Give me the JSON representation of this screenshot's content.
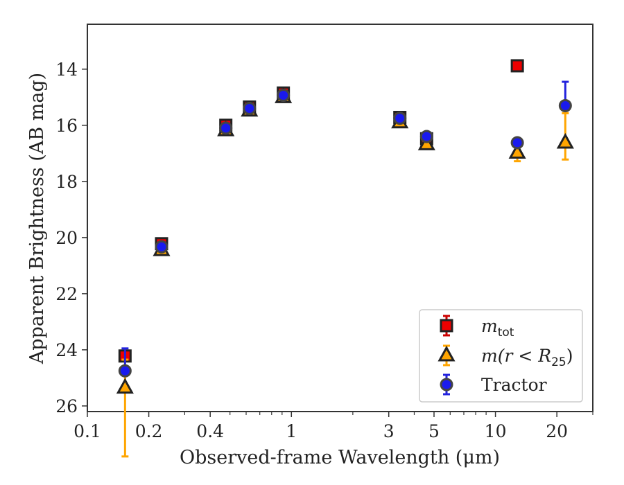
{
  "chart_data": {
    "type": "scatter",
    "title": "",
    "xlabel": "Observed-frame Wavelength (μm)",
    "ylabel": "Apparent Brightness (AB mag)",
    "xscale": "log",
    "xlim": [
      0.1,
      30
    ],
    "ylim": [
      26.2,
      12.4
    ],
    "y_inverted": true,
    "grid": false,
    "legend_position": "lower-right",
    "xticks": [
      {
        "value": 0.1,
        "label": "0.1"
      },
      {
        "value": 0.2,
        "label": "0.2"
      },
      {
        "value": 0.4,
        "label": "0.4"
      },
      {
        "value": 1,
        "label": "1"
      },
      {
        "value": 3,
        "label": "3"
      },
      {
        "value": 5,
        "label": "5"
      },
      {
        "value": 10,
        "label": "10"
      },
      {
        "value": 20,
        "label": "20"
      }
    ],
    "xminor": [
      0.3,
      0.5,
      0.6,
      0.7,
      0.8,
      0.9,
      2,
      4,
      6,
      7,
      8,
      9,
      30
    ],
    "yticks": [
      {
        "value": 14,
        "label": "14"
      },
      {
        "value": 16,
        "label": "16"
      },
      {
        "value": 18,
        "label": "18"
      },
      {
        "value": 20,
        "label": "20"
      },
      {
        "value": 22,
        "label": "22"
      },
      {
        "value": 24,
        "label": "24"
      },
      {
        "value": 26,
        "label": "26"
      }
    ],
    "series": [
      {
        "legend_main": "m",
        "legend_sub": "tot",
        "marker": "square",
        "color": "#ee0000",
        "errcolor": "#cc0000",
        "points": [
          {
            "x": 0.153,
            "y": 24.22,
            "err": 0.0
          },
          {
            "x": 0.231,
            "y": 20.22,
            "err": 0.0
          },
          {
            "x": 0.477,
            "y": 16.0,
            "err": 0.0
          },
          {
            "x": 0.623,
            "y": 15.35,
            "err": 0.0
          },
          {
            "x": 0.913,
            "y": 14.85,
            "err": 0.0
          },
          {
            "x": 3.4,
            "y": 15.72,
            "err": 0.0
          },
          {
            "x": 4.6,
            "y": 16.48,
            "err": 0.0
          },
          {
            "x": 12.8,
            "y": 13.88,
            "err": 0.0
          }
        ]
      },
      {
        "legend_main": "m(r < R",
        "legend_sub": "25",
        "legend_tail": ")",
        "marker": "triangle",
        "color": "#ffa500",
        "errcolor": "#ffa500",
        "points": [
          {
            "x": 0.153,
            "y": 25.35,
            "err": 1.0,
            "err_lo": 2.45,
            "err_hi": 1.0
          },
          {
            "x": 0.231,
            "y": 20.45,
            "err": 0.0
          },
          {
            "x": 0.477,
            "y": 16.18,
            "err": 0.0
          },
          {
            "x": 0.623,
            "y": 15.48,
            "err": 0.0
          },
          {
            "x": 0.913,
            "y": 15.0,
            "err": 0.0
          },
          {
            "x": 3.4,
            "y": 15.9,
            "err": 0.0
          },
          {
            "x": 4.6,
            "y": 16.68,
            "err": 0.0
          },
          {
            "x": 12.8,
            "y": 16.98,
            "err": 0.3
          },
          {
            "x": 22.0,
            "y": 16.62,
            "err_lo": 0.6,
            "err_hi": 1.05
          }
        ]
      },
      {
        "legend_main": "Tractor",
        "marker": "circle",
        "color": "#1a1aee",
        "errcolor": "#2222dd",
        "points": [
          {
            "x": 0.153,
            "y": 24.75,
            "err_lo": 0.0,
            "err_hi": 0.8,
            "upper_limit": true
          },
          {
            "x": 0.231,
            "y": 20.33,
            "err": 0.0
          },
          {
            "x": 0.477,
            "y": 16.1,
            "err": 0.0
          },
          {
            "x": 0.623,
            "y": 15.4,
            "err": 0.0
          },
          {
            "x": 0.913,
            "y": 14.93,
            "err": 0.0
          },
          {
            "x": 3.4,
            "y": 15.75,
            "err": 0.0
          },
          {
            "x": 4.6,
            "y": 16.4,
            "err": 0.0
          },
          {
            "x": 12.8,
            "y": 16.62,
            "err": 0.0
          },
          {
            "x": 22.0,
            "y": 15.3,
            "err_lo": 0.0,
            "err_hi": 0.85,
            "upper_limit": true
          }
        ]
      }
    ]
  }
}
